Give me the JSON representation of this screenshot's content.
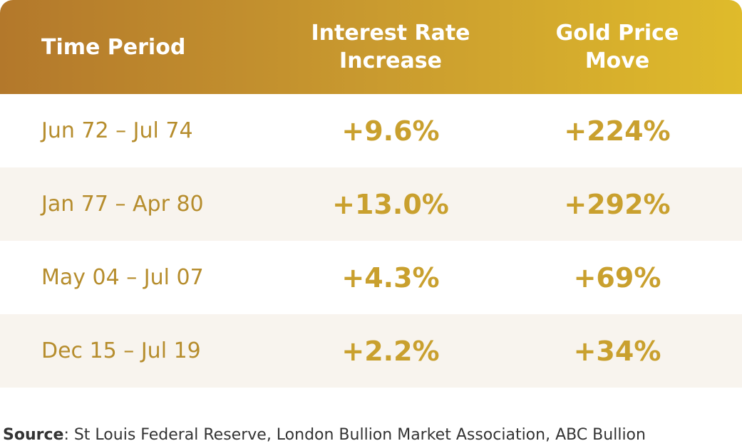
{
  "table": {
    "header": [
      "Time Period",
      "Interest Rate Increase",
      "Gold Price Move"
    ],
    "rows": [
      [
        "Jun 72 – Jul 74",
        "+9.6%",
        "+224%"
      ],
      [
        "Jan 77 – Apr 80",
        "+13.0%",
        "+292%"
      ],
      [
        "May 04 – Jul 07",
        "+4.3%",
        "+69%"
      ],
      [
        "Dec 15 – Jul 19",
        "+2.2%",
        "+34%"
      ]
    ]
  },
  "source": {
    "label": "Source",
    "text": ": St Louis Federal Reserve, London Bullion Market Association, ABC Bullion"
  }
}
